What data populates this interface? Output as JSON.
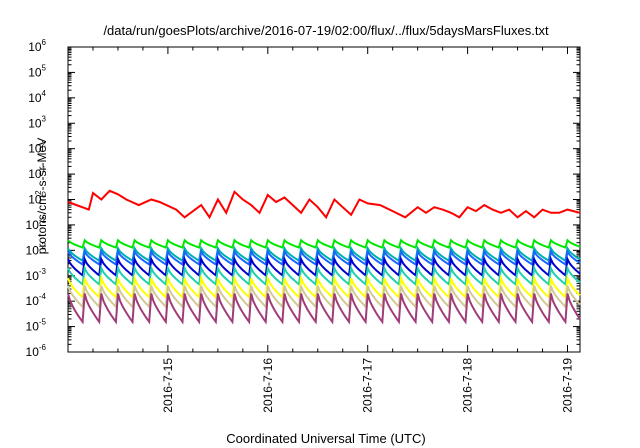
{
  "chart_data": {
    "type": "line",
    "title": "/data/run/goesPlots/archive/2016-07-19/02:00/flux/../flux/5daysMarsFluxes.txt",
    "xlabel": "Coordinated Universal Time (UTC)",
    "ylabel_parts": [
      "protons/cm",
      "2",
      "-s-sr-MeV"
    ],
    "yscale": "log",
    "ylim": [
      1e-06,
      1000000
    ],
    "xlim": [
      "2016-07-14T00:00",
      "2016-07-19T03:00"
    ],
    "grid": false,
    "legend": "none",
    "yticks": [
      {
        "base": "10",
        "exp": "-6"
      },
      {
        "base": "10",
        "exp": "-5"
      },
      {
        "base": "10",
        "exp": "-4"
      },
      {
        "base": "10",
        "exp": "-3"
      },
      {
        "base": "10",
        "exp": "-2"
      },
      {
        "base": "10",
        "exp": "-1"
      },
      {
        "base": "10",
        "exp": "0"
      },
      {
        "base": "10",
        "exp": "1"
      },
      {
        "base": "10",
        "exp": "2"
      },
      {
        "base": "10",
        "exp": "3"
      },
      {
        "base": "10",
        "exp": "4"
      },
      {
        "base": "10",
        "exp": "5"
      },
      {
        "base": "10",
        "exp": "6"
      }
    ],
    "xticks": [
      "2016-7-15",
      "2016-7-16",
      "2016-7-17",
      "2016-7-18",
      "2016-7-19"
    ],
    "series": [
      {
        "color": "#ff0000",
        "x": [
          "2016-07-14T00:00",
          "2016-07-14T05:00",
          "2016-07-14T06:00",
          "2016-07-14T08:00",
          "2016-07-14T10:00",
          "2016-07-14T12:00",
          "2016-07-14T14:00",
          "2016-07-14T17:00",
          "2016-07-14T20:00",
          "2016-07-14T22:00",
          "2016-07-15T02:00",
          "2016-07-15T04:00",
          "2016-07-15T08:00",
          "2016-07-15T10:00",
          "2016-07-15T12:00",
          "2016-07-15T14:00",
          "2016-07-15T16:00",
          "2016-07-15T18:00",
          "2016-07-15T20:00",
          "2016-07-15T22:00",
          "2016-07-16T00:00",
          "2016-07-16T02:00",
          "2016-07-16T04:00",
          "2016-07-16T06:00",
          "2016-07-16T08:00",
          "2016-07-16T10:00",
          "2016-07-16T12:00",
          "2016-07-16T14:00",
          "2016-07-16T16:00",
          "2016-07-16T18:00",
          "2016-07-16T20:00",
          "2016-07-16T22:00",
          "2016-07-17T00:00",
          "2016-07-17T03:00",
          "2016-07-17T06:00",
          "2016-07-17T09:00",
          "2016-07-17T12:00",
          "2016-07-17T14:00",
          "2016-07-17T16:00",
          "2016-07-17T18:00",
          "2016-07-17T20:00",
          "2016-07-17T22:00",
          "2016-07-18T00:00",
          "2016-07-18T02:00",
          "2016-07-18T04:00",
          "2016-07-18T06:00",
          "2016-07-18T08:00",
          "2016-07-18T10:00",
          "2016-07-18T12:00",
          "2016-07-18T14:00",
          "2016-07-18T16:00",
          "2016-07-18T18:00",
          "2016-07-18T20:00",
          "2016-07-18T22:00",
          "2016-07-19T00:00",
          "2016-07-19T03:00"
        ],
        "y": [
          0.8,
          0.4,
          1.8,
          1.0,
          2.2,
          1.6,
          1.0,
          0.6,
          1.0,
          0.8,
          0.4,
          0.2,
          0.6,
          0.2,
          1.0,
          0.3,
          2.0,
          1.0,
          0.6,
          0.3,
          1.5,
          0.8,
          1.2,
          0.6,
          0.3,
          1.0,
          0.5,
          0.2,
          1.0,
          0.5,
          0.25,
          1.0,
          0.7,
          0.6,
          0.35,
          0.2,
          0.5,
          0.3,
          0.5,
          0.4,
          0.3,
          0.2,
          0.5,
          0.35,
          0.6,
          0.4,
          0.3,
          0.4,
          0.2,
          0.35,
          0.2,
          0.4,
          0.3,
          0.3,
          0.4,
          0.3
        ]
      },
      {
        "color": "#00e800",
        "peak": 0.025,
        "trough": 0.012
      },
      {
        "color": "#00b0b0",
        "peak": 0.012,
        "trough": 0.0035
      },
      {
        "color": "#1a66ff",
        "peak": 0.009,
        "trough": 0.0025
      },
      {
        "color": "#0000d0",
        "peak": 0.0045,
        "trough": 0.0009
      },
      {
        "color": "#20d0b0",
        "peak": 0.002,
        "trough": 0.0004
      },
      {
        "color": "#ffff00",
        "peak": 0.0008,
        "trough": 0.00012
      },
      {
        "color": "#d2c896",
        "peak": 0.0004,
        "trough": 5e-05
      },
      {
        "color": "#a03c78",
        "peak": 0.0002,
        "trough": 1.2e-05
      }
    ],
    "pulse_period_hours": 4
  }
}
